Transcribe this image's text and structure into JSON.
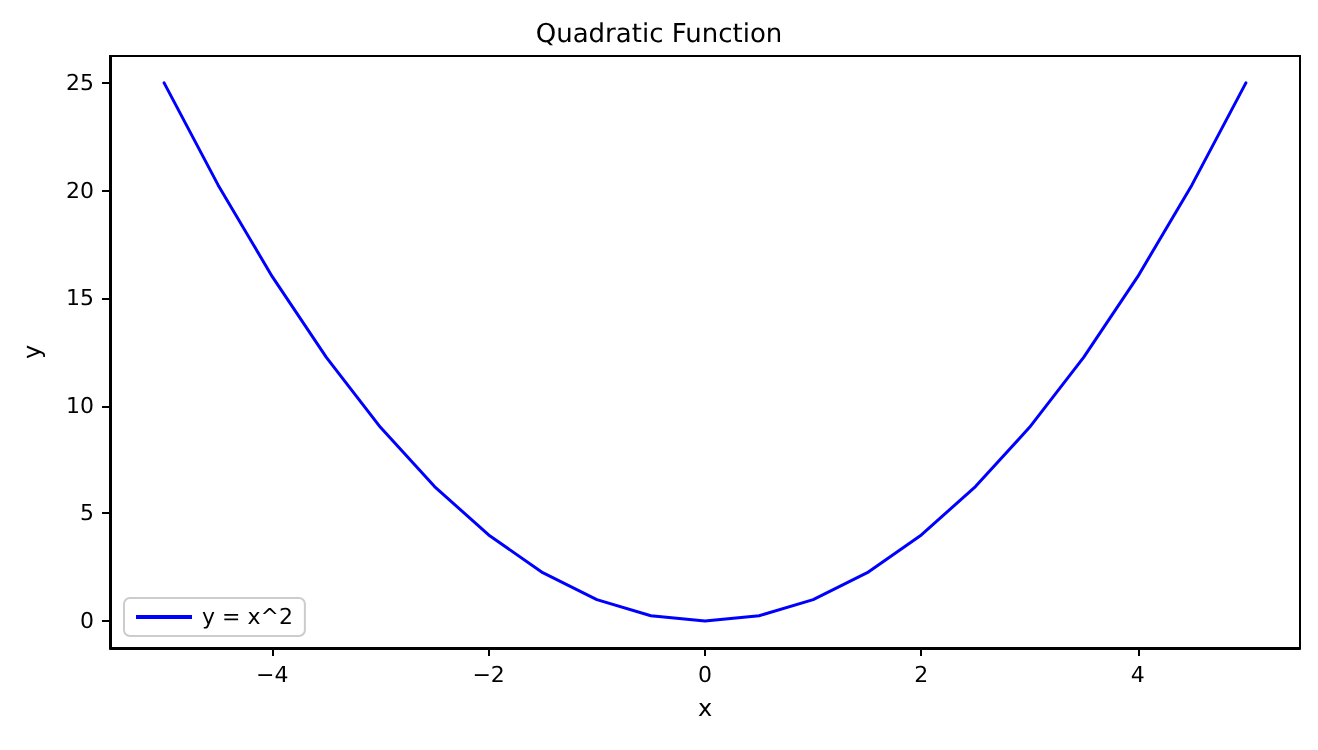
{
  "chart_data": {
    "type": "line",
    "title": "Quadratic Function",
    "xlabel": "x",
    "ylabel": "y",
    "x": [
      -5,
      -4.5,
      -4,
      -3.5,
      -3,
      -2.5,
      -2,
      -1.5,
      -1,
      -0.5,
      0,
      0.5,
      1,
      1.5,
      2,
      2.5,
      3,
      3.5,
      4,
      4.5,
      5
    ],
    "series": [
      {
        "name": "y = x^2",
        "color": "#0000ff",
        "values": [
          25,
          20.25,
          16,
          12.25,
          9,
          6.25,
          4,
          2.25,
          1,
          0.25,
          0,
          0.25,
          1,
          2.25,
          4,
          6.25,
          9,
          12.25,
          16,
          20.25,
          25
        ]
      }
    ],
    "xlim": [
      -5.5,
      5.5
    ],
    "ylim": [
      -1.25,
      26.25
    ],
    "xticks": [
      {
        "value": -4,
        "label": "−4"
      },
      {
        "value": -2,
        "label": "−2"
      },
      0,
      2,
      4
    ],
    "yticks": [
      0,
      5,
      10,
      15,
      20,
      25
    ],
    "legend": "bottom left",
    "grid": false,
    "marker": "none",
    "line_style": "solid"
  }
}
